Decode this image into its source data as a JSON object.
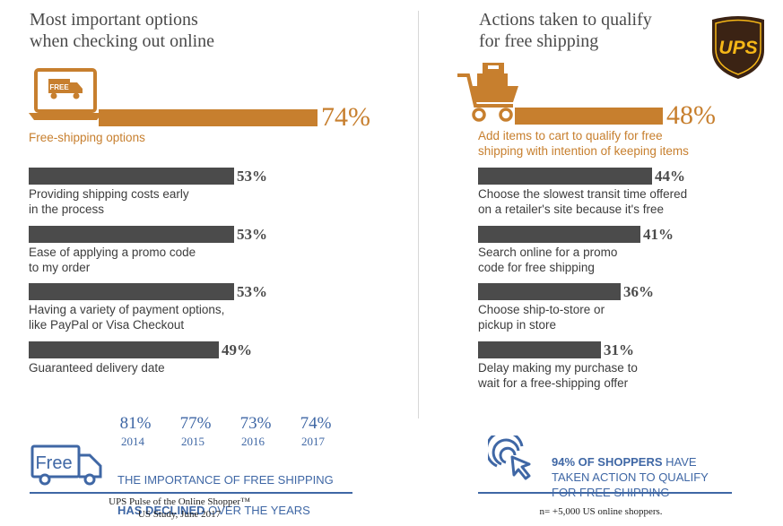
{
  "colors": {
    "accent": "#c77f2e",
    "bar": "#4b4b4b",
    "blue": "#3f67a5"
  },
  "left": {
    "title": "Most important options\nwhen checking out online",
    "icon": "laptop-free-truck-icon",
    "icon_text": "FREE"
  },
  "right": {
    "title": "Actions taken to qualify\nfor free shipping",
    "icon": "shopping-cart-icon"
  },
  "logo": {
    "text": "UPS",
    "icon": "ups-shield-logo"
  },
  "chart_data": [
    {
      "type": "bar",
      "orientation": "horizontal",
      "title": "Most important options when checking out online",
      "unit": "%",
      "xlim": [
        0,
        100
      ],
      "items": [
        {
          "label": "Free-shipping options",
          "value": 74,
          "display": "74%",
          "highlight": true
        },
        {
          "label": "Providing shipping costs early\nin the process",
          "value": 53,
          "display": "53%"
        },
        {
          "label": "Ease of applying a promo code\nto my order",
          "value": 53,
          "display": "53%"
        },
        {
          "label": "Having a variety of payment options,\nlike PayPal or Visa Checkout",
          "value": 53,
          "display": "53%"
        },
        {
          "label": "Guaranteed delivery date",
          "value": 49,
          "display": "49%"
        }
      ]
    },
    {
      "type": "bar",
      "orientation": "horizontal",
      "title": "Actions taken to qualify for free shipping",
      "unit": "%",
      "xlim": [
        0,
        100
      ],
      "items": [
        {
          "label": "Add items to cart to qualify for free\nshipping with intention of keeping items",
          "value": 48,
          "display": "48%",
          "highlight": true
        },
        {
          "label": "Choose the slowest transit time offered\non a retailer's site because it's free",
          "value": 44,
          "display": "44%"
        },
        {
          "label": "Search online for a promo\ncode for free shipping",
          "value": 41,
          "display": "41%"
        },
        {
          "label": "Choose ship-to-store or\npickup in store",
          "value": 36,
          "display": "36%"
        },
        {
          "label": "Delay making my purchase to\nwait for a free-shipping offer",
          "value": 31,
          "display": "31%"
        }
      ]
    },
    {
      "type": "table",
      "title": "Importance of free shipping by year",
      "x": [
        "2014",
        "2015",
        "2016",
        "2017"
      ],
      "values": [
        81,
        77,
        73,
        74
      ],
      "display": [
        "81%",
        "77%",
        "73%",
        "74%"
      ]
    }
  ],
  "trend": {
    "icon": "free-truck-icon",
    "icon_text": "Free",
    "caption_line1": "THE IMPORTANCE OF FREE SHIPPING",
    "caption_bold": "HAS DECLINED",
    "caption_rest": " OVER THE YEARS"
  },
  "callout": {
    "icon": "cursor-click-icon",
    "bold": "94% OF SHOPPERS",
    "rest": " HAVE\nTAKEN ACTION TO QUALIFY\nFOR FREE SHIPPING"
  },
  "footer": {
    "source": "UPS Pulse of the Online Shopper™\nUS Study, June 2017",
    "sample": "n= +5,000 US online shoppers."
  }
}
